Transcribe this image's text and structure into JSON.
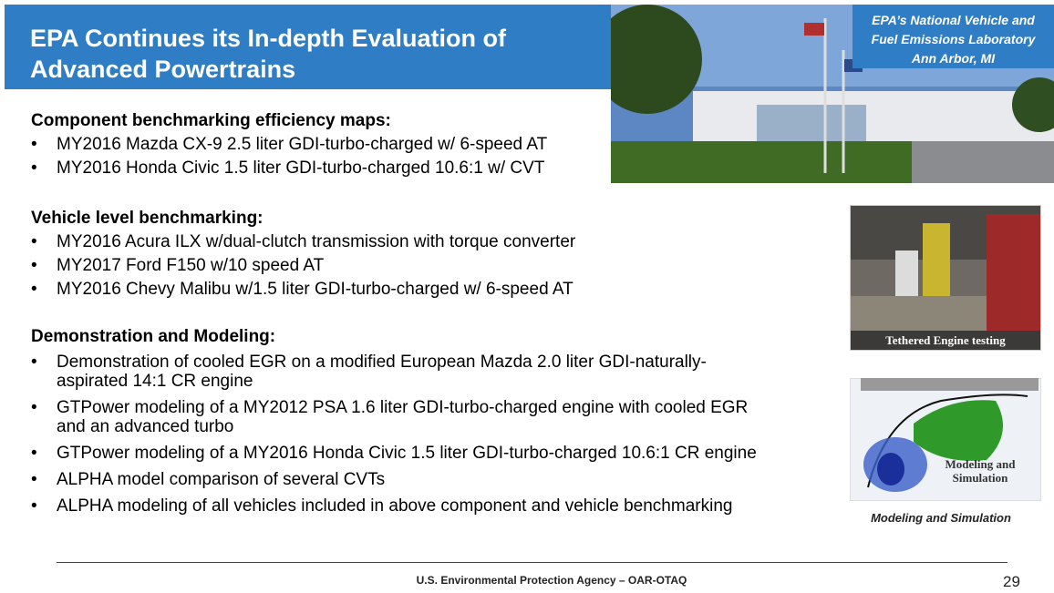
{
  "header": {
    "title": "EPA Continues its In-depth Evaluation of Advanced Powertrains"
  },
  "photo": {
    "caption_lines": [
      "EPA’s National Vehicle and",
      "Fuel Emissions Laboratory",
      "Ann Arbor, MI"
    ]
  },
  "sections": [
    {
      "heading": "Component benchmarking efficiency maps:",
      "items": [
        [
          "MY2016 Mazda CX-9 2.5 liter GDI-turbo-charged w/ 6-speed AT"
        ],
        [
          "MY2016 Honda Civic 1.5 liter GDI-turbo-charged 10.6:1 w/ CVT"
        ]
      ]
    },
    {
      "heading": "Vehicle level benchmarking:",
      "items": [
        [
          "MY2016 Acura ILX w/dual-clutch transmission with torque converter"
        ],
        [
          "MY2017 Ford F150 w/10 speed AT"
        ],
        [
          "MY2016 Chevy Malibu w/1.5 liter GDI-turbo-charged w/ 6-speed AT"
        ]
      ]
    },
    {
      "heading": "Demonstration and Modeling:",
      "items": [
        [
          "Demonstration of cooled EGR on a modified European Mazda 2.0 liter GDI-naturally-",
          "aspirated 14:1 CR engine"
        ],
        [
          "GTPower modeling of a MY2012 PSA 1.6 liter GDI-turbo-charged engine with cooled EGR",
          "and an advanced turbo"
        ],
        [
          "GTPower modeling of a MY2016 Honda Civic 1.5 liter GDI-turbo-charged 10.6:1 CR engine"
        ],
        [
          "ALPHA model comparison of several CVTs"
        ],
        [
          "ALPHA modeling of all vehicles included in above component and vehicle benchmarking"
        ]
      ]
    }
  ],
  "engine_image": {
    "caption": "Tethered Engine testing"
  },
  "model_image": {
    "overlay": "Modeling and Simulation",
    "caption": "Modeling and Simulation"
  },
  "footer": {
    "agency": "U.S. Environmental Protection Agency – OAR-OTAQ",
    "page": "29"
  }
}
